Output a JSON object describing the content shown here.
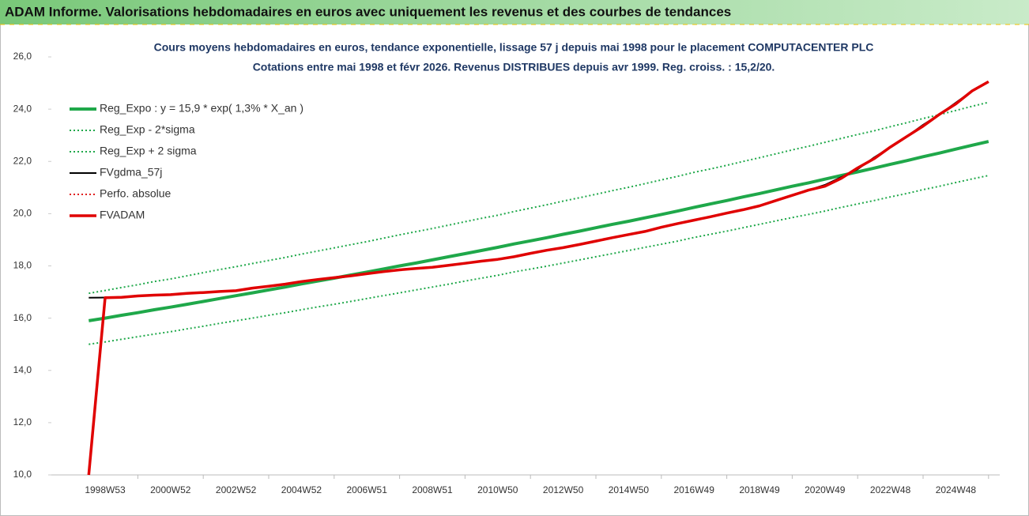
{
  "header": {
    "title": "ADAM Informe. Valorisations hebdomadaires en euros avec uniquement les revenus et des courbes de tendances"
  },
  "chart_data": {
    "type": "line",
    "title": "Cours moyens hebdomadaires en euros, tendance exponentielle, lissage 57 j depuis mai 1998 pour le placement COMPUTACENTER PLC",
    "subtitle": "Cotations entre mai 1998 et févr 2026. Revenus DISTRIBUES depuis avr 1999. Reg. croiss. : 15,2/20.",
    "categories": [
      null,
      "1998W53",
      null,
      null,
      null,
      "2000W52",
      null,
      null,
      null,
      "2002W52",
      null,
      null,
      null,
      "2004W52",
      null,
      null,
      null,
      "2006W51",
      null,
      null,
      null,
      "2008W51",
      null,
      null,
      null,
      "2010W50",
      null,
      null,
      null,
      "2012W50",
      null,
      null,
      null,
      "2014W50",
      null,
      null,
      null,
      "2016W49",
      null,
      null,
      null,
      "2018W49",
      null,
      null,
      null,
      "2020W49",
      null,
      null,
      null,
      "2022W48",
      null,
      null,
      null,
      "2024W48",
      null,
      null
    ],
    "ylim": [
      10,
      26
    ],
    "yticks": [
      {
        "value": 10,
        "label": "10,0"
      },
      {
        "value": 12,
        "label": "12,0"
      },
      {
        "value": 14,
        "label": "14,0"
      },
      {
        "value": 16,
        "label": "16,0"
      },
      {
        "value": 18,
        "label": "18,0"
      },
      {
        "value": 20,
        "label": "20,0"
      },
      {
        "value": 22,
        "label": "22,0"
      },
      {
        "value": 24,
        "label": "24,0"
      },
      {
        "value": 26,
        "label": "26,0"
      }
    ],
    "grid": false,
    "legend": "upper left",
    "series": [
      {
        "name": "Reg_Expo : y = 15,9 * exp( 1,3% *  X_an )",
        "color": "#1fa84a",
        "style": "solid",
        "width": 4,
        "values": [
          15.9,
          16.0,
          16.11,
          16.21,
          16.32,
          16.42,
          16.53,
          16.64,
          16.75,
          16.86,
          16.97,
          17.08,
          17.19,
          17.31,
          17.42,
          17.53,
          17.65,
          17.76,
          17.88,
          18.0,
          18.11,
          18.23,
          18.35,
          18.47,
          18.59,
          18.71,
          18.84,
          18.96,
          19.08,
          19.21,
          19.33,
          19.46,
          19.59,
          19.71,
          19.84,
          19.97,
          20.1,
          20.24,
          20.37,
          20.5,
          20.64,
          20.77,
          20.91,
          21.05,
          21.18,
          21.32,
          21.46,
          21.6,
          21.74,
          21.89,
          22.03,
          22.18,
          22.32,
          22.47,
          22.62,
          22.76
        ]
      },
      {
        "name": "Reg_Exp - 2*sigma",
        "color": "#1fa84a",
        "style": "dotted",
        "width": 2,
        "values": [
          15.0,
          15.09,
          15.19,
          15.29,
          15.39,
          15.48,
          15.59,
          15.69,
          15.8,
          15.9,
          16.0,
          16.11,
          16.21,
          16.32,
          16.43,
          16.53,
          16.64,
          16.75,
          16.86,
          16.97,
          17.08,
          17.19,
          17.3,
          17.42,
          17.53,
          17.64,
          17.77,
          17.88,
          17.99,
          18.11,
          18.23,
          18.35,
          18.47,
          18.59,
          18.71,
          18.83,
          18.95,
          19.09,
          19.21,
          19.33,
          19.46,
          19.59,
          19.72,
          19.85,
          19.97,
          20.1,
          20.24,
          20.37,
          20.5,
          20.64,
          20.77,
          20.92,
          21.05,
          21.19,
          21.33,
          21.46
        ]
      },
      {
        "name": "Reg_Exp + 2 sigma",
        "color": "#1fa84a",
        "style": "dotted",
        "width": 2,
        "values": [
          16.95,
          17.06,
          17.17,
          17.28,
          17.4,
          17.5,
          17.62,
          17.74,
          17.86,
          17.97,
          18.09,
          18.21,
          18.32,
          18.45,
          18.57,
          18.69,
          18.81,
          18.93,
          19.06,
          19.19,
          19.31,
          19.43,
          19.56,
          19.69,
          19.82,
          19.94,
          20.08,
          20.21,
          20.34,
          20.48,
          20.61,
          20.74,
          20.88,
          21.01,
          21.15,
          21.29,
          21.43,
          21.58,
          21.71,
          21.85,
          22.0,
          22.14,
          22.29,
          22.44,
          22.58,
          22.73,
          22.88,
          23.03,
          23.17,
          23.33,
          23.48,
          23.64,
          23.79,
          23.95,
          24.11,
          24.26
        ]
      },
      {
        "name": "FVgdma_57j",
        "color": "#000000",
        "style": "solid",
        "width": 2,
        "values": [
          16.78,
          16.79,
          16.81,
          16.85,
          16.88,
          16.91,
          16.95,
          16.98,
          17.02,
          17.06,
          17.15,
          17.22,
          17.3,
          17.4,
          17.48,
          17.55,
          17.62,
          17.7,
          17.78,
          17.85,
          17.9,
          17.95,
          18.02,
          18.1,
          18.18,
          18.25,
          18.35,
          18.48,
          18.6,
          18.7,
          18.82,
          18.95,
          19.08,
          19.2,
          19.32,
          19.48,
          19.62,
          19.75,
          19.88,
          20.02,
          20.15,
          20.3,
          20.5,
          20.7,
          20.9,
          21.1,
          21.4,
          21.7,
          22.15,
          22.55,
          22.95,
          23.4,
          23.8,
          24.25,
          24.7,
          25.05
        ]
      },
      {
        "name": "Perfo. absolue",
        "color": "#e02020",
        "style": "dotted",
        "width": 2,
        "values": [
          10.0,
          16.78,
          16.8,
          16.85,
          16.88,
          16.9,
          16.95,
          16.98,
          17.02,
          17.05,
          17.15,
          17.22,
          17.3,
          17.4,
          17.48,
          17.55,
          17.62,
          17.7,
          17.78,
          17.85,
          17.9,
          17.95,
          18.02,
          18.1,
          18.18,
          18.25,
          18.35,
          18.48,
          18.6,
          18.7,
          18.82,
          18.95,
          19.08,
          19.2,
          19.32,
          19.48,
          19.62,
          19.75,
          19.88,
          20.02,
          20.15,
          20.3,
          20.5,
          20.7,
          20.9,
          21.05,
          21.35,
          21.75,
          22.1,
          22.55,
          22.95,
          23.35,
          23.8,
          24.2,
          24.7,
          25.05
        ]
      },
      {
        "name": "FVADAM",
        "color": "#e00000",
        "style": "solid",
        "width": 3.5,
        "values": [
          10.0,
          16.78,
          16.8,
          16.85,
          16.88,
          16.9,
          16.95,
          16.98,
          17.02,
          17.05,
          17.15,
          17.22,
          17.3,
          17.4,
          17.48,
          17.55,
          17.62,
          17.7,
          17.78,
          17.85,
          17.9,
          17.95,
          18.02,
          18.1,
          18.18,
          18.25,
          18.35,
          18.48,
          18.6,
          18.7,
          18.82,
          18.95,
          19.08,
          19.2,
          19.32,
          19.48,
          19.62,
          19.75,
          19.88,
          20.02,
          20.15,
          20.3,
          20.5,
          20.7,
          20.9,
          21.05,
          21.35,
          21.75,
          22.1,
          22.55,
          22.95,
          23.35,
          23.8,
          24.2,
          24.7,
          25.05
        ]
      }
    ]
  }
}
